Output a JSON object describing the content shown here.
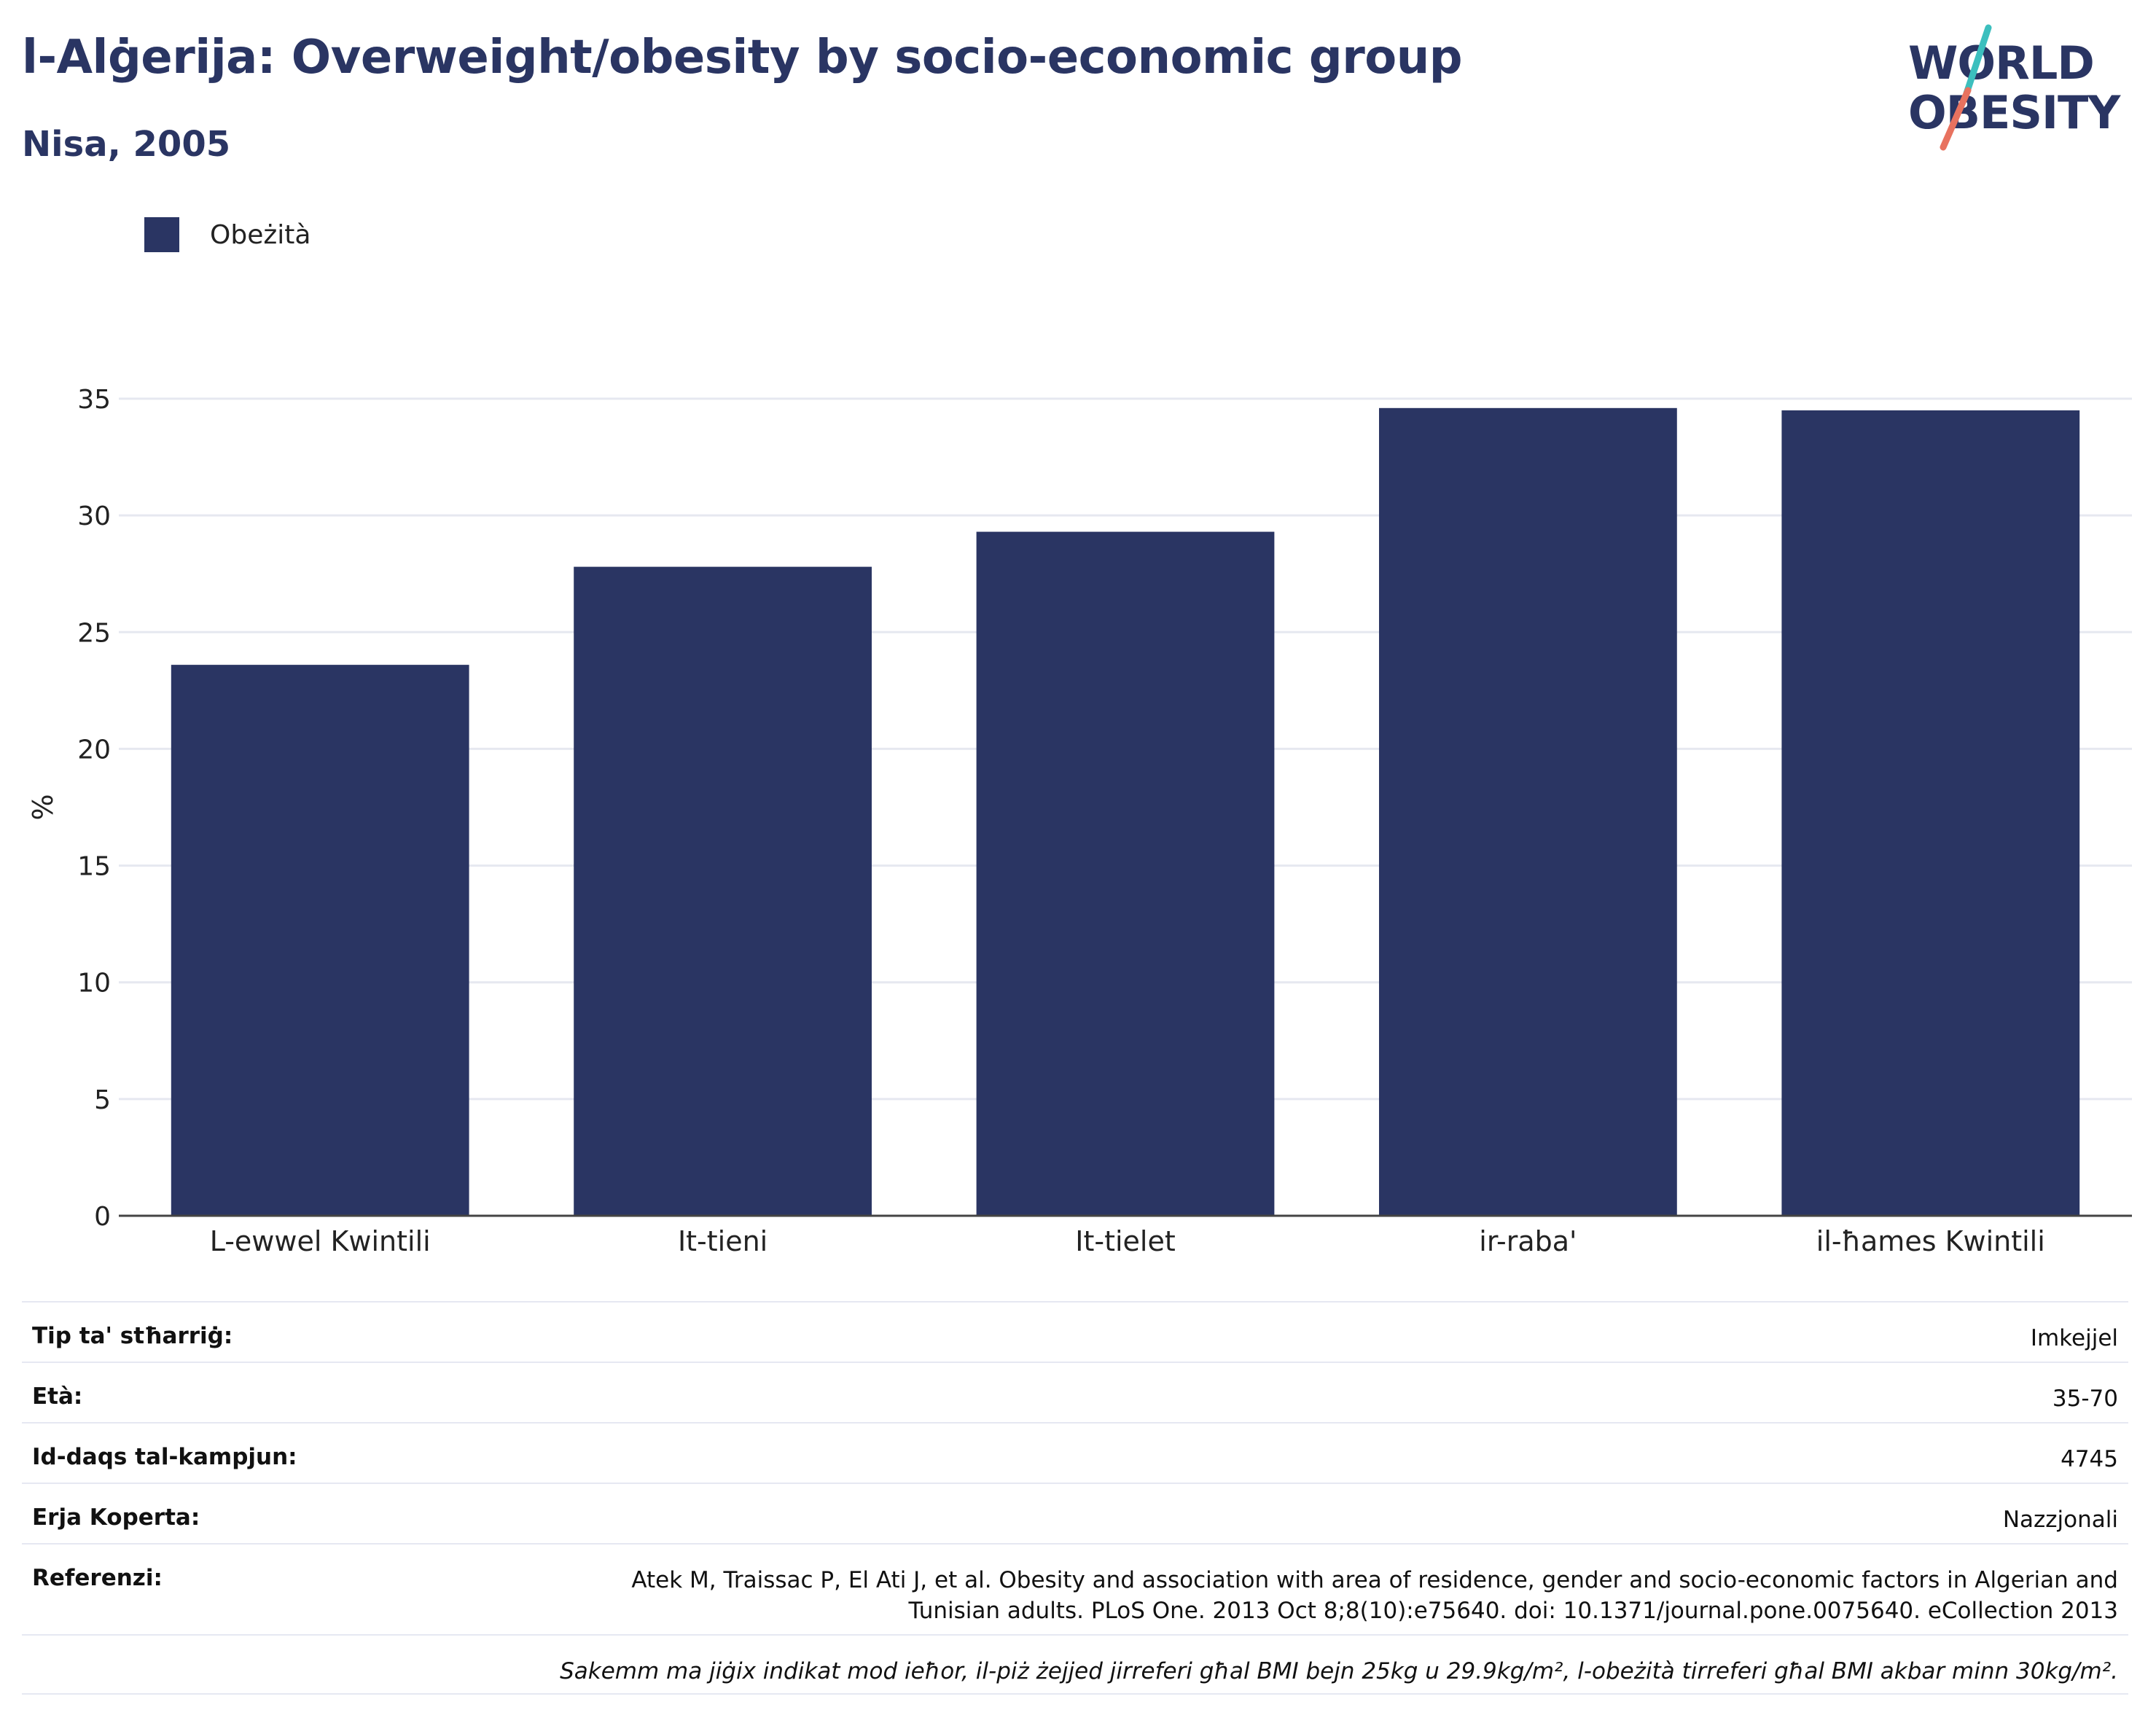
{
  "header": {
    "title": "l-Alġerija: Overweight/obesity by socio-economic group",
    "subtitle": "Nisa, 2005"
  },
  "logo": {
    "line1": "WORLD",
    "line2": "OBESITY",
    "accent_teal": "#3cbfbe",
    "accent_coral": "#e8725f",
    "color": "#2a3563"
  },
  "legend": {
    "items": [
      {
        "label": "Obeżità",
        "color": "#2a3563"
      }
    ]
  },
  "chart_data": {
    "type": "bar",
    "categories": [
      "L-ewwel Kwintili",
      "It-tieni",
      "It-tielet",
      "ir-raba'",
      "il-ħames Kwintili"
    ],
    "series": [
      {
        "name": "Obeżità",
        "values": [
          23.6,
          27.8,
          29.3,
          34.6,
          34.5
        ],
        "color": "#2a3563"
      }
    ],
    "title": "l-Alġerija: Overweight/obesity by socio-economic group",
    "subtitle": "Nisa, 2005",
    "xlabel": "",
    "ylabel": "%",
    "ylim": [
      0,
      35
    ],
    "yticks": [
      0,
      5,
      10,
      15,
      20,
      25,
      30,
      35
    ],
    "grid": true,
    "legend_position": "top-left"
  },
  "info": {
    "rows": [
      {
        "label": "Tip ta' stħarriġ:",
        "value": "Imkejjel"
      },
      {
        "label": "Età:",
        "value": "35-70"
      },
      {
        "label": "Id-daqs tal-kampjun:",
        "value": "4745"
      },
      {
        "label": "Erja Koperta:",
        "value": "Nazzjonali"
      }
    ],
    "reference": {
      "label": "Referenzi:",
      "line1": "Atek M, Traissac P, El Ati J, et al. Obesity and association with area of residence, gender and socio-economic factors in Algerian and",
      "line2": "Tunisian adults. PLoS One. 2013 Oct 8;8(10):e75640. doi: 10.1371/journal.pone.0075640. eCollection 2013"
    },
    "note": "Sakemm ma jiġix indikat mod ieħor, il-piż żejjed jirreferi għal BMI bejn 25kg u 29.9kg/m², l-obeżità tirreferi għal BMI akbar minn 30kg/m²."
  }
}
